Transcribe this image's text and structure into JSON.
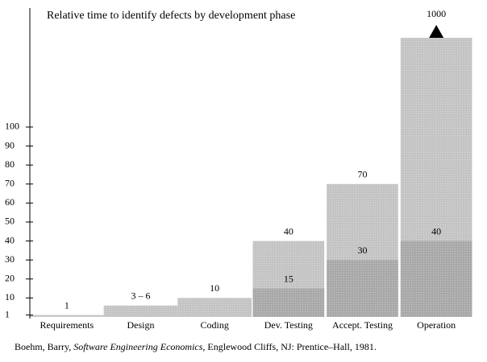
{
  "chart_data": {
    "type": "overlay-bar",
    "title": "Relative time to identify defects by development phase",
    "categories": [
      "Requirements",
      "Design",
      "Coding",
      "Dev. Testing",
      "Accept. Testing",
      "Operation"
    ],
    "series": [
      {
        "color": "#c4c4c4",
        "values": [
          1,
          6,
          10,
          40,
          70,
          1000
        ],
        "value_labels": [
          "1",
          "3 – 6",
          "10",
          "40",
          "70",
          "1000"
        ]
      },
      {
        "color": "#a9a9a9",
        "values": [
          null,
          null,
          null,
          15,
          30,
          40
        ]
      }
    ],
    "ylim": [
      0,
      147
    ],
    "yticks": [
      1,
      10,
      20,
      30,
      40,
      50,
      60,
      70,
      80,
      90,
      100
    ],
    "citation": {
      "author": "Boehm, Barry, ",
      "work": "Software Engineering Economics",
      "publisher": ", Englewood Cliffs, NJ: Prentice–Hall, 1981."
    }
  }
}
